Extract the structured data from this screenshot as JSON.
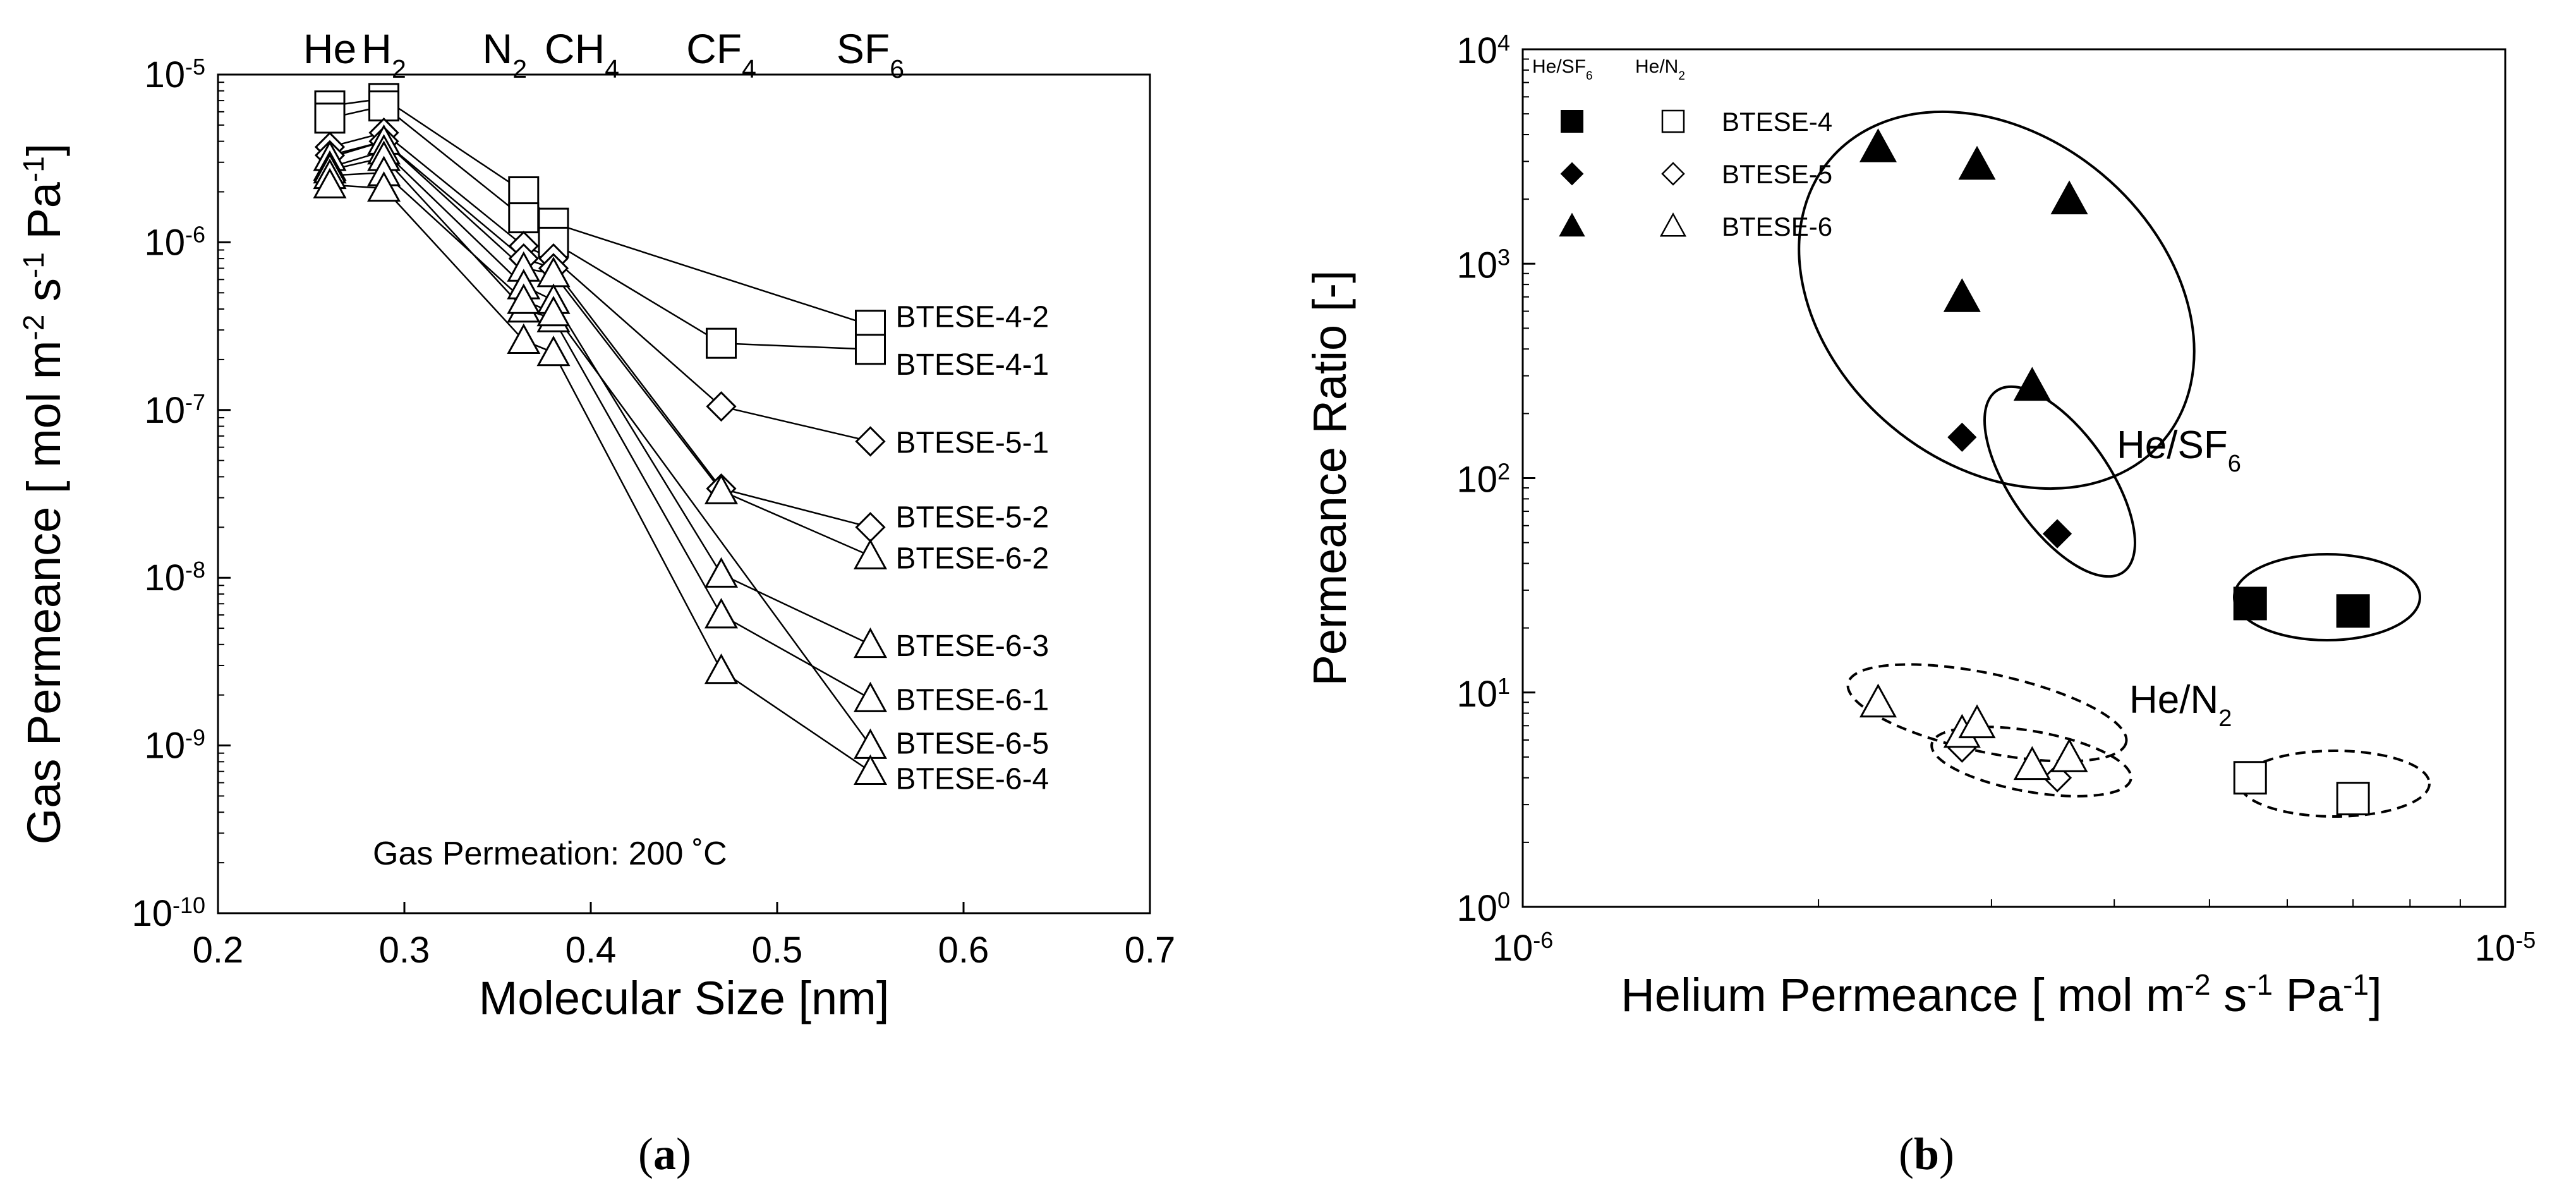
{
  "figure": {
    "caption_a": {
      "open": "(",
      "letter": "a",
      "close": ")"
    },
    "caption_b": {
      "open": "(",
      "letter": "b",
      "close": ")"
    },
    "colors": {
      "ink": "#000000",
      "background": "#ffffff"
    }
  },
  "chart_data": [
    {
      "panel": "a",
      "type": "line",
      "x_scale": "linear",
      "y_scale": "log",
      "xlim": [
        0.2,
        0.7
      ],
      "ylim_exp": [
        -10,
        -5
      ],
      "xticks": [
        "0.2",
        "0.3",
        "0.4",
        "0.5",
        "0.6",
        "0.7"
      ],
      "xtick_values": [
        0.2,
        0.3,
        0.4,
        0.5,
        0.6,
        0.7
      ],
      "yticks": [
        {
          "base": "10",
          "exp": "-5",
          "value_exp": -5
        },
        {
          "base": "10",
          "exp": "-6",
          "value_exp": -6
        },
        {
          "base": "10",
          "exp": "-7",
          "value_exp": -7
        },
        {
          "base": "10",
          "exp": "-8",
          "value_exp": -8
        },
        {
          "base": "10",
          "exp": "-9",
          "value_exp": -9
        },
        {
          "base": "10",
          "exp": "-10",
          "value_exp": -10
        }
      ],
      "xlabel": "Molecular Size [nm]",
      "ylabel": {
        "t1": "Gas Permeance [ mol m",
        "s1": "-2",
        "t2": " s",
        "s2": "-1",
        "t3": " Pa",
        "s3": "-1",
        "t4": "]"
      },
      "annotation": "Gas Permeation: 200 ˚C",
      "gas_labels": [
        {
          "main": "He",
          "sub": "",
          "x": 0.26
        },
        {
          "main": "H",
          "sub": "2",
          "x": 0.289
        },
        {
          "main": "N",
          "sub": "2",
          "x": 0.364
        },
        {
          "main": "CH",
          "sub": "4",
          "x": 0.38
        },
        {
          "main": "CF",
          "sub": "4",
          "x": 0.47
        },
        {
          "main": "SF",
          "sub": "6",
          "x": 0.55
        }
      ],
      "x": [
        0.26,
        0.289,
        0.364,
        0.38,
        0.47,
        0.55
      ],
      "series": [
        {
          "name": "BTESE-4-2",
          "marker": "square",
          "values": [
            6.5e-06,
            7.2e-06,
            2e-06,
            1.3e-06,
            null,
            3.2e-07
          ]
        },
        {
          "name": "BTESE-4-1",
          "marker": "square",
          "values": [
            5.5e-06,
            6.5e-06,
            1.4e-06,
            1e-06,
            2.5e-07,
            2.3e-07
          ]
        },
        {
          "name": "BTESE-5-1",
          "marker": "diamond",
          "values": [
            3.7e-06,
            4.5e-06,
            9.5e-07,
            8e-07,
            1.05e-07,
            6.5e-08
          ]
        },
        {
          "name": "BTESE-5-2",
          "marker": "diamond",
          "values": [
            3.3e-06,
            4e-06,
            8e-07,
            7e-07,
            3.4e-08,
            2e-08
          ]
        },
        {
          "name": "BTESE-6-2",
          "marker": "triangle",
          "values": [
            3.2e-06,
            4e-06,
            7e-07,
            6.5e-07,
            3.3e-08,
            1.35e-08
          ]
        },
        {
          "name": "BTESE-6-3",
          "marker": "triangle",
          "values": [
            2.8e-06,
            3.5e-06,
            5.5e-07,
            4.5e-07,
            1.05e-08,
            4e-09
          ]
        },
        {
          "name": "BTESE-6-1",
          "marker": "triangle",
          "values": [
            2.7e-06,
            3.2e-06,
            4e-07,
            3.5e-07,
            6e-09,
            1.9e-09
          ]
        },
        {
          "name": "BTESE-6-5",
          "marker": "triangle",
          "values": [
            2.5e-06,
            2.6e-06,
            4.5e-07,
            3.8e-07,
            null,
            1e-09
          ]
        },
        {
          "name": "BTESE-6-4",
          "marker": "triangle",
          "values": [
            2.2e-06,
            2.1e-06,
            2.6e-07,
            2.2e-07,
            2.8e-09,
            7e-10
          ]
        }
      ]
    },
    {
      "panel": "b",
      "type": "scatter",
      "x_scale": "log",
      "y_scale": "log",
      "xlim_exp": [
        -6,
        -5
      ],
      "ylim_exp": [
        0,
        4
      ],
      "xticks": [
        {
          "base": "10",
          "exp": "-6",
          "value_exp": -6
        },
        {
          "base": "10",
          "exp": "-5",
          "value_exp": -5
        }
      ],
      "yticks": [
        {
          "base": "10",
          "exp": "4",
          "value_exp": 4
        },
        {
          "base": "10",
          "exp": "3",
          "value_exp": 3
        },
        {
          "base": "10",
          "exp": "2",
          "value_exp": 2
        },
        {
          "base": "10",
          "exp": "1",
          "value_exp": 1
        },
        {
          "base": "10",
          "exp": "0",
          "value_exp": 0
        }
      ],
      "xlabel": {
        "t1": "Helium Permeance [ mol m",
        "s1": "-2",
        "t2": " s",
        "s2": "-1",
        "t3": " Pa",
        "s3": "-1",
        "t4": "]"
      },
      "ylabel": "Permeance Ratio [-]",
      "legend": {
        "placement": "top-left",
        "header_filled": {
          "main": "He/SF",
          "sub": "6"
        },
        "header_open": {
          "main": "He/N",
          "sub": "2"
        },
        "entries": [
          {
            "label": "BTESE-4",
            "marker": "square"
          },
          {
            "label": "BTESE-5",
            "marker": "diamond"
          },
          {
            "label": "BTESE-6",
            "marker": "triangle"
          }
        ]
      },
      "group_labels": [
        {
          "main": "He/SF",
          "sub": "6"
        },
        {
          "main": "He/N",
          "sub": "2"
        }
      ],
      "series": [
        {
          "name": "BTESE-4 He/SF6",
          "marker": "square",
          "filled": true,
          "x": [
            5.5e-06,
            7e-06
          ],
          "y": [
            26,
            24
          ]
        },
        {
          "name": "BTESE-5 He/SF6",
          "marker": "diamond",
          "filled": true,
          "x": [
            2.8e-06,
            3.5e-06
          ],
          "y": [
            155,
            55
          ]
        },
        {
          "name": "BTESE-6 He/SF6",
          "marker": "triangle",
          "filled": true,
          "x": [
            2.3e-06,
            2.9e-06,
            3.6e-06,
            2.8e-06,
            3.3e-06
          ],
          "y": [
            3500,
            2900,
            2000,
            700,
            270
          ]
        },
        {
          "name": "BTESE-4 He/N2",
          "marker": "square",
          "filled": false,
          "x": [
            5.5e-06,
            7e-06
          ],
          "y": [
            4.0,
            3.2
          ]
        },
        {
          "name": "BTESE-5 He/N2",
          "marker": "diamond",
          "filled": false,
          "x": [
            2.8e-06,
            3.5e-06
          ],
          "y": [
            5.5,
            4.0
          ]
        },
        {
          "name": "BTESE-6 He/N2",
          "marker": "triangle",
          "filled": false,
          "x": [
            2.3e-06,
            2.8e-06,
            2.9e-06,
            3.3e-06,
            3.6e-06
          ],
          "y": [
            9,
            6.5,
            7.2,
            4.6,
            5.0
          ]
        }
      ]
    }
  ]
}
